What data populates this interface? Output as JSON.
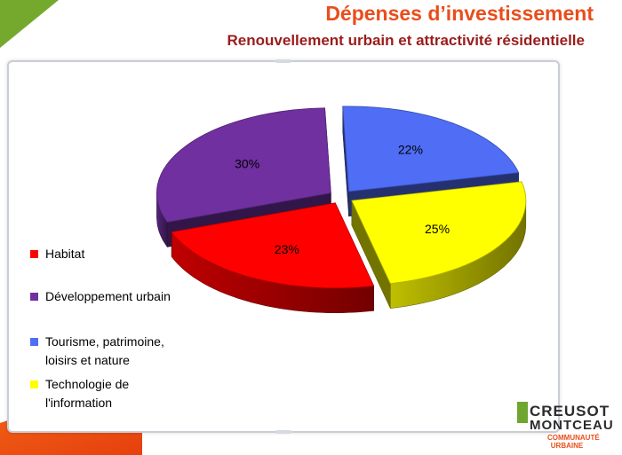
{
  "header": {
    "title": "Dépenses d’investissement",
    "subtitle": "Renouvellement urbain et attractivité résidentielle"
  },
  "chart_data": {
    "type": "pie",
    "title": "",
    "categories": [
      "Habitat",
      "Développement urbain",
      "Tourisme, patrimoine, loisirs et nature",
      "Technologie de l'information"
    ],
    "values": [
      23,
      30,
      22,
      25
    ],
    "labels": [
      "23%",
      "30%",
      "22%",
      "25%"
    ],
    "colors": [
      "#ff0000",
      "#7030a0",
      "#4f6df5",
      "#ffff00"
    ],
    "exploded": true,
    "three_d": true,
    "legend_position": "left"
  },
  "legend": [
    {
      "lines": [
        "Habitat"
      ],
      "color": "#ff0000"
    },
    {
      "lines": [
        "Développement urbain"
      ],
      "color": "#7030a0"
    },
    {
      "lines": [
        "Tourisme, patrimoine,",
        "loisirs et nature"
      ],
      "color": "#4f6df5"
    },
    {
      "lines": [
        "Technologie de",
        "l'information"
      ],
      "color": "#ffff00"
    }
  ],
  "logo": {
    "line1": "CREUSOT",
    "line2": "MONTCEAU",
    "line3a": "COMMUNAUTÉ",
    "line3b": "URBAINE"
  }
}
